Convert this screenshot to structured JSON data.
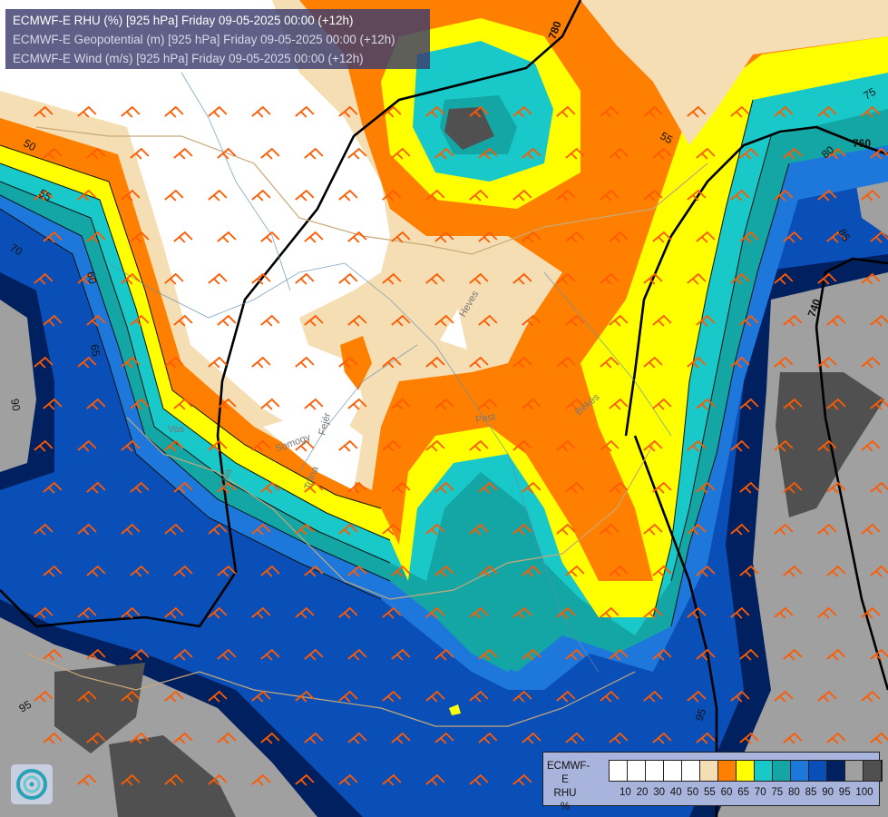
{
  "title": {
    "line1": "ECMWF-E RHU (%) [925 hPa] Friday 09-05-2025 00:00 (+12h)",
    "line2": "ECMWF-E Geopotential (m) [925 hPa] Friday 09-05-2025 00:00 (+12h)",
    "line3": "ECMWF-E Wind (m/s) [925 hPa] Friday 09-05-2025 00:00 (+12h)"
  },
  "legend": {
    "line1": "ECMWF-E",
    "line2": "RHU",
    "line3": "%",
    "swatch_colors": [
      "#ffffff",
      "#ffffff",
      "#ffffff",
      "#ffffff",
      "#ffffff",
      "#f5deb3",
      "#ff8000",
      "#ffff00",
      "#19c8c8",
      "#14a5a5",
      "#1e78dc",
      "#0a4fb8",
      "#002060",
      "#a0a0a0",
      "#505050"
    ],
    "ticks": [
      "10",
      "20",
      "30",
      "40",
      "50",
      "55",
      "60",
      "65",
      "70",
      "75",
      "80",
      "85",
      "90",
      "95",
      "100"
    ]
  },
  "geopotential_labels": [
    "780",
    "760",
    "740"
  ],
  "rhu_contour_labels": [
    "50",
    "55",
    "60",
    "65",
    "70",
    "75",
    "80",
    "85",
    "90",
    "95"
  ],
  "region_labels": [
    "Vas",
    "Zala",
    "Somogy",
    "Tolna",
    "Fejér",
    "Heves",
    "Pest",
    "Békés"
  ],
  "colors": {
    "rhu_below_50": "#ffffff",
    "rhu_50": "#f5deb3",
    "rhu_55": "#ff8000",
    "rhu_60": "#ffff00",
    "rhu_65": "#19c8c8",
    "rhu_70": "#14a5a5",
    "rhu_75": "#1e78dc",
    "rhu_80": "#0a4fb8",
    "rhu_85": "#002060",
    "rhu_90": "#a0a0a0",
    "rhu_95": "#505050"
  },
  "icons": [
    "wind-barb-icon",
    "ecmwf-logo-icon"
  ]
}
